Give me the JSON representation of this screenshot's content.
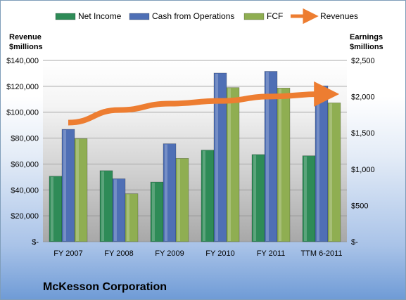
{
  "chart_data": {
    "type": "bar",
    "categories": [
      "FY 2007",
      "FY 2008",
      "FY 2009",
      "FY 2010",
      "FY 2011",
      "TTM 6-2011"
    ],
    "series": [
      {
        "name": "Net Income",
        "axis": "right",
        "color": "#2e8b57",
        "values": [
          903,
          980,
          823,
          1263,
          1202,
          1185
        ]
      },
      {
        "name": "Cash from Operations",
        "axis": "right",
        "color": "#4f6fb5",
        "values": [
          1550,
          868,
          1351,
          2326,
          2350,
          2150
        ]
      },
      {
        "name": "FCF",
        "axis": "right",
        "color": "#8fae52",
        "values": [
          1422,
          662,
          1150,
          2126,
          2120,
          1915
        ]
      },
      {
        "name": "Revenues",
        "axis": "left",
        "color": "#ed7d31",
        "type": "arrow-line",
        "values": [
          92000,
          101700,
          106600,
          108700,
          112100,
          114000
        ]
      }
    ],
    "left_axis": {
      "title_line1": "Revenue",
      "title_line2": "$millions",
      "range": [
        0,
        140000
      ],
      "ticks": [
        "$-",
        "$20,000",
        "$40,000",
        "$60,000",
        "$80,000",
        "$100,000",
        "$120,000",
        "$140,000"
      ]
    },
    "right_axis": {
      "title_line1": "Earnings",
      "title_line2": "$millions",
      "range": [
        0,
        2500
      ],
      "ticks": [
        "$-",
        "$500",
        "$1,000",
        "$1,500",
        "$2,000",
        "$2,500"
      ]
    },
    "legend_position": "top",
    "grid": true,
    "company": "McKesson Corporation"
  }
}
